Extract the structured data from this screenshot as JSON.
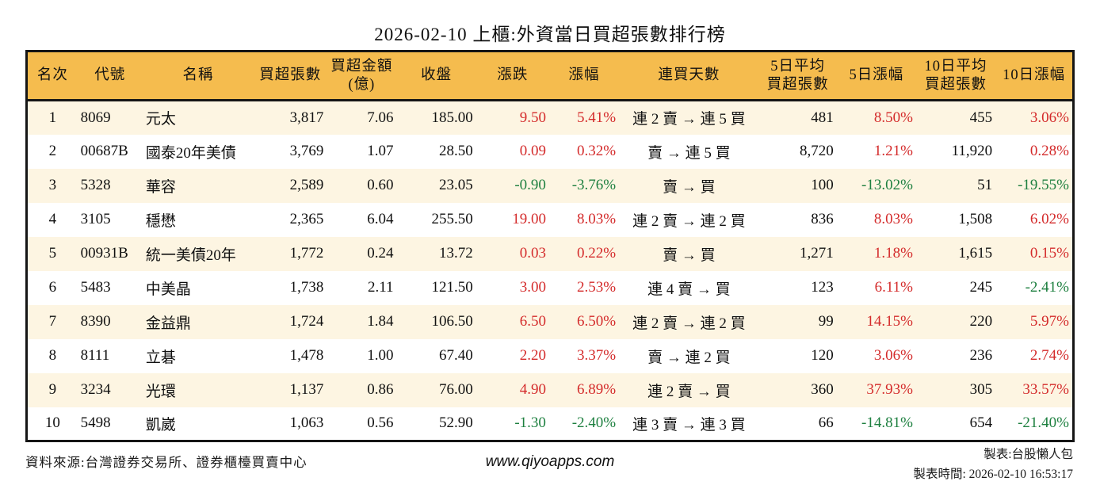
{
  "title": "2026-02-10 上櫃:外資當日買超張數排行榜",
  "table": {
    "columns": [
      {
        "key": "rank",
        "label": "名次",
        "align": "c"
      },
      {
        "key": "code",
        "label": "代號",
        "align": "l"
      },
      {
        "key": "name",
        "label": "名稱",
        "align": "l"
      },
      {
        "key": "volume",
        "label": "買超張數",
        "align": "r"
      },
      {
        "key": "amount",
        "label": "買超金額\n(億)",
        "align": "r"
      },
      {
        "key": "close",
        "label": "收盤",
        "align": "r"
      },
      {
        "key": "change",
        "label": "漲跌",
        "align": "r",
        "colored": true
      },
      {
        "key": "change-pct",
        "label": "漲幅",
        "align": "r",
        "colored": true
      },
      {
        "key": "streak",
        "label": "連買天數",
        "align": "c"
      },
      {
        "key": "avg5",
        "label": "5日平均\n買超張數",
        "align": "r"
      },
      {
        "key": "pct5",
        "label": "5日漲幅",
        "align": "r",
        "colored": true
      },
      {
        "key": "avg10",
        "label": "10日平均\n買超張數",
        "align": "r"
      },
      {
        "key": "pct10",
        "label": "10日漲幅",
        "align": "r",
        "colored": true
      }
    ],
    "rows": [
      [
        "1",
        "8069",
        "元太",
        "3,817",
        "7.06",
        "185.00",
        "9.50",
        "5.41%",
        "連 2 賣 → 連 5 買",
        "481",
        "8.50%",
        "455",
        "3.06%"
      ],
      [
        "2",
        "00687B",
        "國泰20年美債",
        "3,769",
        "1.07",
        "28.50",
        "0.09",
        "0.32%",
        "賣 → 連 5 買",
        "8,720",
        "1.21%",
        "11,920",
        "0.28%"
      ],
      [
        "3",
        "5328",
        "華容",
        "2,589",
        "0.60",
        "23.05",
        "-0.90",
        "-3.76%",
        "賣 → 買",
        "100",
        "-13.02%",
        "51",
        "-19.55%"
      ],
      [
        "4",
        "3105",
        "穩懋",
        "2,365",
        "6.04",
        "255.50",
        "19.00",
        "8.03%",
        "連 2 賣 → 連 2 買",
        "836",
        "8.03%",
        "1,508",
        "6.02%"
      ],
      [
        "5",
        "00931B",
        "統一美債20年",
        "1,772",
        "0.24",
        "13.72",
        "0.03",
        "0.22%",
        "賣 → 買",
        "1,271",
        "1.18%",
        "1,615",
        "0.15%"
      ],
      [
        "6",
        "5483",
        "中美晶",
        "1,738",
        "2.11",
        "121.50",
        "3.00",
        "2.53%",
        "連 4 賣 → 買",
        "123",
        "6.11%",
        "245",
        "-2.41%"
      ],
      [
        "7",
        "8390",
        "金益鼎",
        "1,724",
        "1.84",
        "106.50",
        "6.50",
        "6.50%",
        "連 2 賣 → 連 2 買",
        "99",
        "14.15%",
        "220",
        "5.97%"
      ],
      [
        "8",
        "8111",
        "立碁",
        "1,478",
        "1.00",
        "67.40",
        "2.20",
        "3.37%",
        "賣 → 連 2 買",
        "120",
        "3.06%",
        "236",
        "2.74%"
      ],
      [
        "9",
        "3234",
        "光環",
        "1,137",
        "0.86",
        "76.00",
        "4.90",
        "6.89%",
        "連 2 賣 → 買",
        "360",
        "37.93%",
        "305",
        "33.57%"
      ],
      [
        "10",
        "5498",
        "凱崴",
        "1,063",
        "0.56",
        "52.90",
        "-1.30",
        "-2.40%",
        "連 3 賣 → 連 3 買",
        "66",
        "-14.81%",
        "654",
        "-21.40%"
      ]
    ]
  },
  "footer": {
    "source": "資料來源:台灣證券交易所、證券櫃檯買賣中心",
    "website": "www.qiyoapps.com",
    "author": "製表:台股懶人包",
    "generated": "製表時間: 2026-02-10 16:53:17"
  },
  "colors": {
    "header_bg": "#f5bc4e",
    "row_alt": "#fdf5e2",
    "up": "#d42b2b",
    "down": "#1e8040",
    "border": "#151515"
  }
}
